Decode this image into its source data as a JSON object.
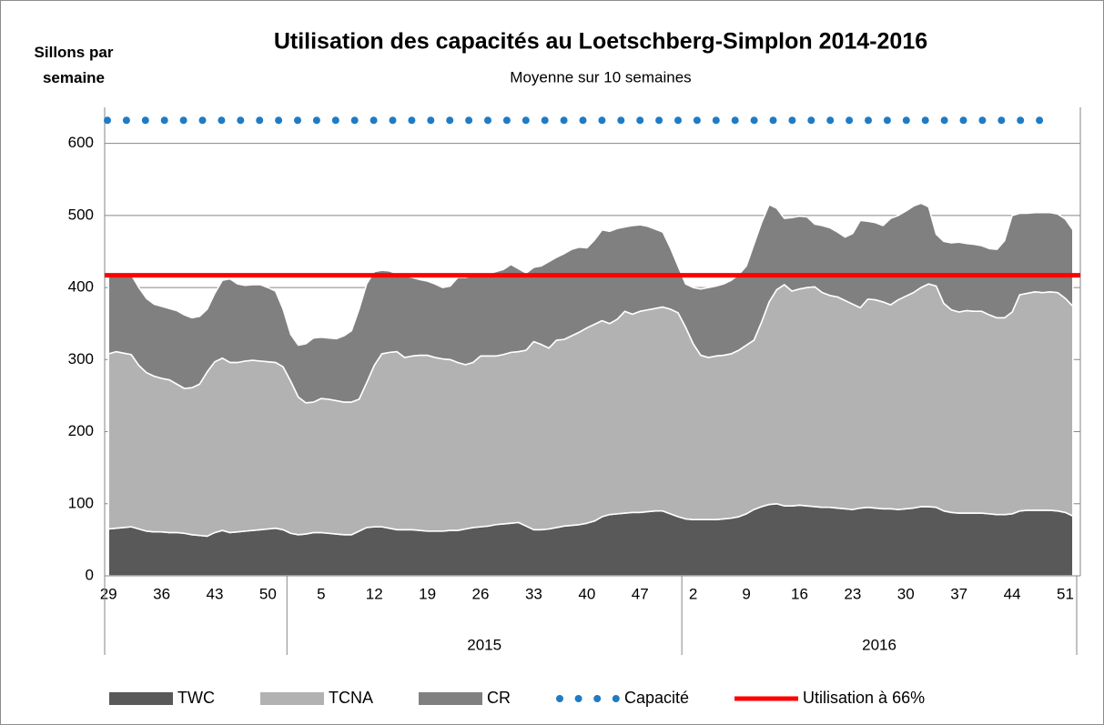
{
  "chart_data": {
    "type": "stacked_area",
    "title": "Utilisation des capacités au Loetschberg-Simplon 2014-2016",
    "subtitle": "Moyenne sur 10 semaines",
    "y_label": "Sillons par semaine",
    "categories": [
      "29",
      null,
      null,
      null,
      null,
      null,
      null,
      "36",
      null,
      null,
      null,
      null,
      null,
      null,
      "43",
      null,
      null,
      null,
      null,
      null,
      null,
      "50",
      null,
      null,
      null,
      null,
      null,
      null,
      "5",
      null,
      null,
      null,
      null,
      null,
      null,
      "12",
      null,
      null,
      null,
      null,
      null,
      null,
      "19",
      null,
      null,
      null,
      null,
      null,
      null,
      "26",
      null,
      null,
      null,
      null,
      null,
      null,
      "33",
      null,
      null,
      null,
      null,
      null,
      null,
      "40",
      null,
      null,
      null,
      null,
      null,
      null,
      "47",
      null,
      null,
      null,
      null,
      null,
      null,
      "2",
      null,
      null,
      null,
      null,
      null,
      null,
      "9",
      null,
      null,
      null,
      null,
      null,
      null,
      "16",
      null,
      null,
      null,
      null,
      null,
      null,
      "23",
      null,
      null,
      null,
      null,
      null,
      null,
      "30",
      null,
      null,
      null,
      null,
      null,
      null,
      "37",
      null,
      null,
      null,
      null,
      null,
      null,
      "44",
      null,
      null,
      null,
      null,
      null,
      null,
      "51",
      null
    ],
    "groups": [
      {
        "count": 24
      },
      {
        "label": "2015",
        "count": 52
      },
      {
        "label": "2016",
        "count": 52
      }
    ],
    "series": [
      {
        "name": "TWC",
        "color": "#595959",
        "values": [
          65,
          66,
          67,
          68,
          65,
          62,
          61,
          61,
          60,
          60,
          59,
          57,
          56,
          55,
          60,
          63,
          60,
          61,
          62,
          63,
          64,
          65,
          66,
          64,
          59,
          57,
          58,
          60,
          60,
          59,
          58,
          57,
          57,
          62,
          67,
          68,
          68,
          66,
          64,
          64,
          64,
          63,
          62,
          62,
          62,
          63,
          63,
          65,
          67,
          68,
          69,
          71,
          72,
          73,
          74,
          69,
          64,
          64,
          65,
          67,
          69,
          70,
          71,
          73,
          76,
          82,
          85,
          86,
          87,
          88,
          88,
          89,
          90,
          90,
          86,
          82,
          79,
          78,
          78,
          78,
          78,
          79,
          80,
          82,
          86,
          92,
          96,
          99,
          100,
          97,
          97,
          98,
          97,
          96,
          95,
          95,
          94,
          93,
          92,
          94,
          95,
          94,
          93,
          93,
          92,
          93,
          94,
          96,
          96,
          95,
          90,
          88,
          87,
          87,
          87,
          87,
          86,
          85,
          85,
          86,
          90,
          91,
          91,
          91,
          91,
          90,
          88,
          83
        ]
      },
      {
        "name": "TCNA",
        "color": "#b2b2b2",
        "values": [
          243,
          245,
          242,
          239,
          227,
          220,
          216,
          213,
          212,
          206,
          201,
          204,
          210,
          228,
          237,
          239,
          236,
          235,
          236,
          236,
          234,
          232,
          230,
          226,
          211,
          191,
          182,
          181,
          186,
          186,
          185,
          184,
          184,
          183,
          201,
          224,
          240,
          244,
          247,
          239,
          241,
          243,
          244,
          241,
          239,
          237,
          233,
          228,
          229,
          237,
          236,
          234,
          235,
          237,
          237,
          244,
          261,
          257,
          251,
          260,
          259,
          263,
          267,
          271,
          273,
          272,
          265,
          270,
          280,
          275,
          279,
          280,
          281,
          283,
          284,
          283,
          266,
          244,
          228,
          225,
          227,
          227,
          228,
          231,
          234,
          235,
          256,
          281,
          297,
          307,
          298,
          300,
          303,
          305,
          298,
          294,
          293,
          289,
          285,
          278,
          289,
          289,
          287,
          283,
          291,
          295,
          299,
          304,
          309,
          307,
          288,
          281,
          279,
          281,
          280,
          280,
          276,
          273,
          273,
          280,
          300,
          301,
          303,
          302,
          303,
          303,
          297,
          291
        ]
      },
      {
        "name": "CR",
        "color": "#808080",
        "values": [
          110,
          109,
          110,
          111,
          108,
          103,
          100,
          100,
          99,
          102,
          102,
          97,
          94,
          87,
          95,
          108,
          116,
          109,
          105,
          105,
          106,
          103,
          99,
          80,
          65,
          72,
          82,
          89,
          85,
          85,
          86,
          92,
          99,
          125,
          137,
          130,
          116,
          113,
          108,
          113,
          109,
          105,
          103,
          102,
          99,
          102,
          118,
          121,
          120,
          113,
          114,
          117,
          118,
          122,
          115,
          107,
          103,
          109,
          120,
          115,
          119,
          120,
          118,
          111,
          117,
          126,
          128,
          126,
          117,
          123,
          120,
          116,
          110,
          104,
          85,
          65,
          60,
          78,
          92,
          97,
          97,
          99,
          102,
          105,
          110,
          133,
          138,
          135,
          113,
          92,
          102,
          101,
          98,
          87,
          93,
          94,
          90,
          88,
          98,
          121,
          108,
          107,
          106,
          120,
          117,
          118,
          120,
          117,
          107,
          72,
          86,
          93,
          97,
          93,
          93,
          91,
          92,
          95,
          107,
          134,
          113,
          111,
          110,
          111,
          110,
          109,
          110,
          106
        ]
      }
    ],
    "reference_lines": [
      {
        "name": "Capacité",
        "value": 632,
        "color": "#1f7bc4",
        "style": "dotted"
      },
      {
        "name": "Utilisation à 66%",
        "value": 417,
        "color": "#ff0000",
        "style": "solid"
      }
    ],
    "ylim": [
      0,
      650
    ],
    "yticks": [
      0,
      100,
      200,
      300,
      400,
      500,
      600
    ],
    "grid": true,
    "legend": "bottom"
  }
}
